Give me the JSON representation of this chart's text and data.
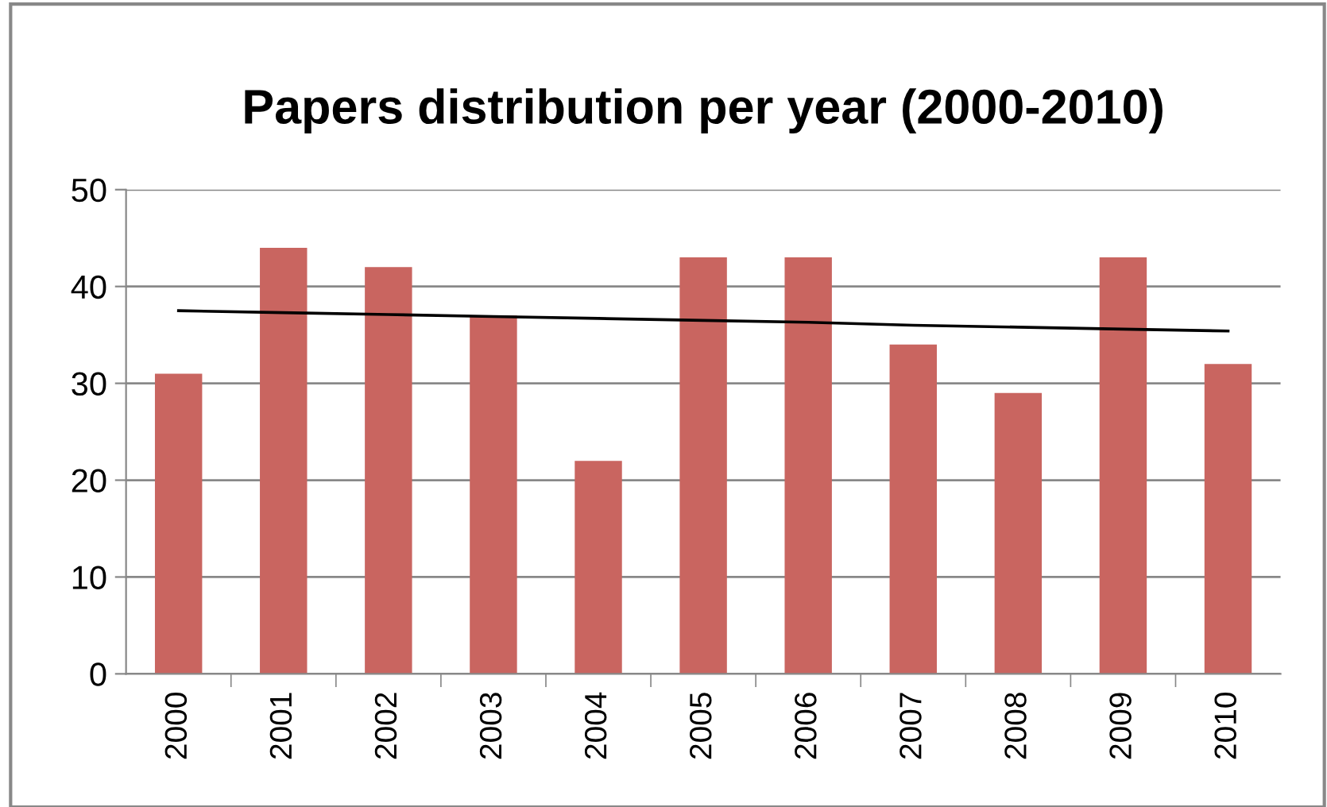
{
  "chart_data": {
    "type": "bar",
    "title": "Papers distribution per year (2000-2010)",
    "categories": [
      "2000",
      "2001",
      "2002",
      "2003",
      "2004",
      "2005",
      "2006",
      "2007",
      "2008",
      "2009",
      "2010"
    ],
    "series": [
      {
        "color": "#c96560",
        "values": [
          31,
          44,
          42,
          37,
          22,
          43,
          43,
          34,
          29,
          43,
          32
        ]
      },
      {
        "type": "line",
        "color": "#000000",
        "values": [
          37.5,
          37.3,
          37.1,
          36.9,
          36.7,
          36.5,
          36.3,
          36.0,
          35.8,
          35.6,
          35.4
        ]
      }
    ],
    "ylim": [
      0,
      50
    ],
    "yticks": [
      0,
      10,
      20,
      30,
      40,
      50
    ],
    "grid": "y"
  }
}
